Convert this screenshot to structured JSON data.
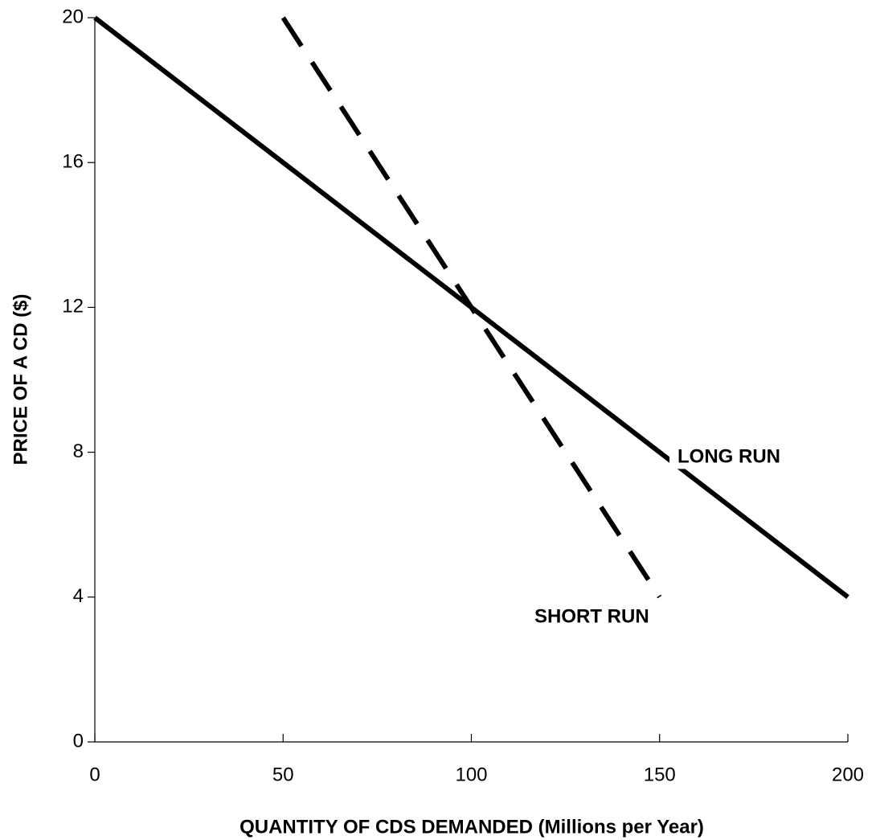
{
  "chart_data": {
    "type": "line",
    "xlabel": "QUANTITY OF CDS DEMANDED (Millions per Year)",
    "ylabel": "PRICE OF A CD ($)",
    "xlim": [
      0,
      200
    ],
    "ylim": [
      0,
      20
    ],
    "xticks": [
      0,
      50,
      100,
      150,
      200
    ],
    "yticks": [
      0,
      4,
      8,
      12,
      16,
      20
    ],
    "series": [
      {
        "name": "LONG RUN",
        "color": "#000000",
        "style": "solid",
        "x": [
          0,
          200
        ],
        "values": [
          20,
          4
        ]
      },
      {
        "name": "SHORT RUN",
        "color": "#000000",
        "style": "dashed",
        "x": [
          50,
          150
        ],
        "values": [
          20,
          4
        ]
      }
    ]
  }
}
